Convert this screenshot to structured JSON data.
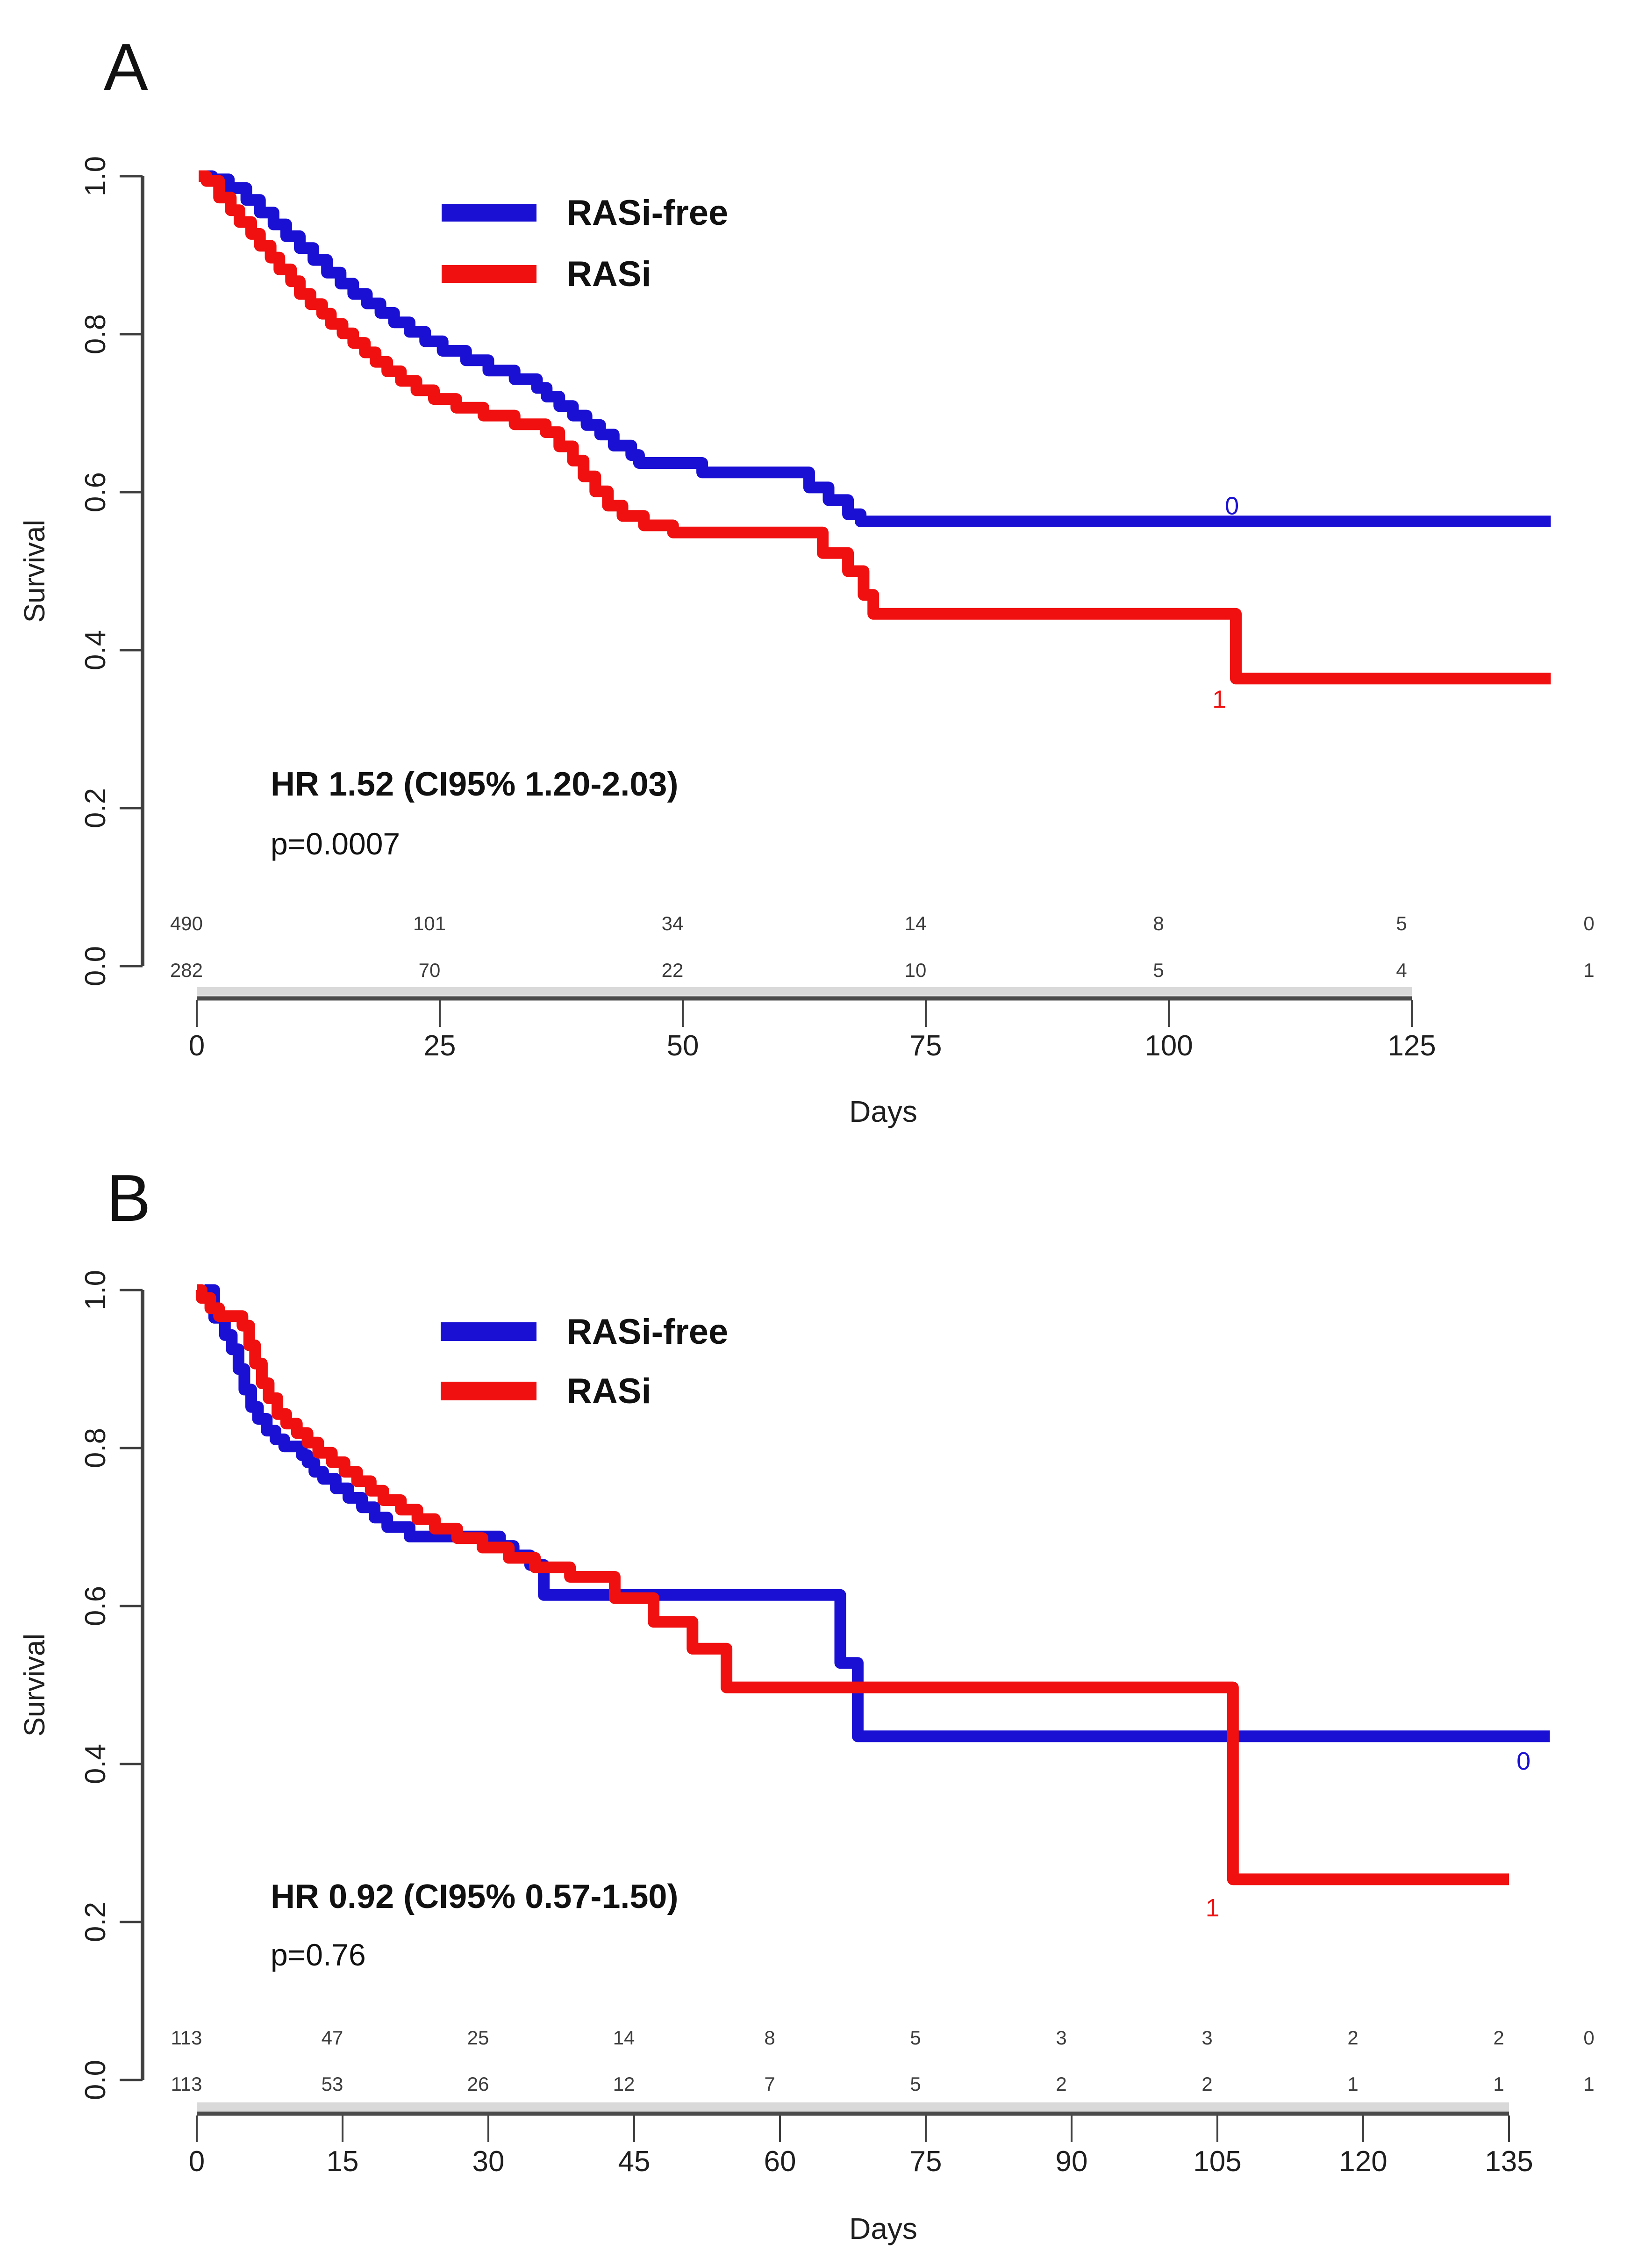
{
  "figure": {
    "background": "#ffffff",
    "colors": {
      "rasi_free": "#1a10d3",
      "rasi": "#f01010",
      "axis": "#3f3f3f",
      "axis_shadow": "#d9d9d9",
      "text": "#111111",
      "risk_text": "#3d3d3d"
    }
  },
  "chart_data": [
    {
      "type": "line",
      "panel_label": "A",
      "title": "",
      "xlabel": "Days",
      "ylabel": "Survival",
      "xlim": [
        0,
        125
      ],
      "ylim": [
        0.0,
        1.0
      ],
      "xticks": [
        0,
        25,
        50,
        75,
        100,
        125
      ],
      "ytick_labels": [
        "1.0",
        "0.8",
        "0.6",
        "0.4",
        "0.2",
        "0.0"
      ],
      "yticks": [
        1.0,
        0.8,
        0.6,
        0.4,
        0.2,
        0.0
      ],
      "grid": false,
      "legend_position": "upper-center",
      "stats": {
        "hr": "HR 1.52 (CI95% 1.20-2.03)",
        "p": "p=0.0007"
      },
      "legend": [
        {
          "label": "RASi-free",
          "color": "#1a10d3"
        },
        {
          "label": "RASi",
          "color": "#f01010"
        }
      ],
      "series": [
        {
          "name": "RASi-free",
          "color": "#1a10d3",
          "end_day": 139.3,
          "annotation": {
            "text": "0",
            "day": 106.5,
            "s": 0.572
          },
          "points": [
            [
              0.5,
              1.0
            ],
            [
              1.6,
              0.996
            ],
            [
              3.3,
              0.985
            ],
            [
              5.1,
              0.97
            ],
            [
              6.5,
              0.954
            ],
            [
              7.9,
              0.939
            ],
            [
              9.2,
              0.924
            ],
            [
              10.6,
              0.909
            ],
            [
              12,
              0.894
            ],
            [
              13.4,
              0.878
            ],
            [
              14.8,
              0.864
            ],
            [
              16.1,
              0.851
            ],
            [
              17.5,
              0.839
            ],
            [
              18.9,
              0.827
            ],
            [
              20.3,
              0.815
            ],
            [
              21.9,
              0.803
            ],
            [
              23.5,
              0.791
            ],
            [
              25.3,
              0.779
            ],
            [
              27.7,
              0.767
            ],
            [
              30,
              0.754
            ],
            [
              32.7,
              0.743
            ],
            [
              35,
              0.732
            ],
            [
              36,
              0.721
            ],
            [
              37.3,
              0.709
            ],
            [
              38.7,
              0.697
            ],
            [
              40.1,
              0.685
            ],
            [
              41.5,
              0.673
            ],
            [
              42.9,
              0.659
            ],
            [
              44.7,
              0.647
            ],
            [
              45.5,
              0.637
            ],
            [
              52,
              0.625
            ],
            [
              63,
              0.606
            ],
            [
              65,
              0.59
            ],
            [
              67,
              0.572
            ],
            [
              68.3,
              0.563
            ],
            [
              139.3,
              0.563
            ]
          ]
        },
        {
          "name": "RASi",
          "color": "#f01010",
          "end_day": 139.3,
          "annotation": {
            "text": "1",
            "day": 105.2,
            "s": 0.327
          },
          "points": [
            [
              0.2,
              1.0
            ],
            [
              1,
              0.994
            ],
            [
              2.3,
              0.973
            ],
            [
              3.5,
              0.957
            ],
            [
              4.4,
              0.942
            ],
            [
              5.6,
              0.927
            ],
            [
              6.5,
              0.912
            ],
            [
              7.6,
              0.897
            ],
            [
              8.5,
              0.882
            ],
            [
              9.7,
              0.867
            ],
            [
              10.6,
              0.851
            ],
            [
              11.7,
              0.838
            ],
            [
              12.9,
              0.826
            ],
            [
              13.8,
              0.813
            ],
            [
              15,
              0.801
            ],
            [
              16.1,
              0.789
            ],
            [
              17.3,
              0.777
            ],
            [
              18.4,
              0.765
            ],
            [
              19.6,
              0.753
            ],
            [
              21,
              0.741
            ],
            [
              22.6,
              0.729
            ],
            [
              24.4,
              0.718
            ],
            [
              26.7,
              0.707
            ],
            [
              29.5,
              0.697
            ],
            [
              32.7,
              0.686
            ],
            [
              35.9,
              0.676
            ],
            [
              37.3,
              0.658
            ],
            [
              38.7,
              0.64
            ],
            [
              39.8,
              0.62
            ],
            [
              41,
              0.601
            ],
            [
              42.3,
              0.583
            ],
            [
              43.8,
              0.57
            ],
            [
              46,
              0.558
            ],
            [
              49,
              0.549
            ],
            [
              64.4,
              0.523
            ],
            [
              67,
              0.5
            ],
            [
              68.6,
              0.47
            ],
            [
              69.6,
              0.446
            ],
            [
              106.9,
              0.364
            ],
            [
              139.3,
              0.364
            ]
          ]
        }
      ],
      "at_risk": {
        "days": [
          0,
          25,
          50,
          75,
          100,
          125,
          143.2
        ],
        "rows": [
          {
            "name": "RASi-free",
            "counts": [
              490,
              101,
              34,
              14,
              8,
              5,
              0
            ]
          },
          {
            "name": "RASi",
            "counts": [
              282,
              70,
              22,
              10,
              5,
              4,
              1
            ]
          }
        ]
      }
    },
    {
      "type": "line",
      "panel_label": "B",
      "title": "",
      "xlabel": "Days",
      "ylabel": "Survival",
      "xlim": [
        0,
        135
      ],
      "ylim": [
        0.0,
        1.0
      ],
      "xticks": [
        0,
        15,
        30,
        45,
        60,
        75,
        90,
        105,
        120,
        135
      ],
      "ytick_labels": [
        "1.0",
        "0.8",
        "0.6",
        "0.4",
        "0.2",
        "0.0"
      ],
      "yticks": [
        1.0,
        0.8,
        0.6,
        0.4,
        0.2,
        0.0
      ],
      "grid": false,
      "legend_position": "upper-center",
      "stats": {
        "hr": "HR 0.92 (CI95% 0.57-1.50)",
        "p": "p=0.76"
      },
      "legend": [
        {
          "label": "RASi-free",
          "color": "#1a10d3"
        },
        {
          "label": "RASi",
          "color": "#f01010"
        }
      ],
      "series": [
        {
          "name": "RASi-free",
          "color": "#1a10d3",
          "end_day": 139.2,
          "annotation": {
            "text": "0",
            "day": 136.5,
            "s": 0.393
          },
          "points": [
            [
              0.8,
              1.0
            ],
            [
              1.8,
              0.965
            ],
            [
              2.9,
              0.943
            ],
            [
              3.6,
              0.925
            ],
            [
              4.3,
              0.9
            ],
            [
              4.9,
              0.874
            ],
            [
              5.6,
              0.852
            ],
            [
              6.3,
              0.837
            ],
            [
              7.2,
              0.822
            ],
            [
              8.1,
              0.811
            ],
            [
              9,
              0.802
            ],
            [
              10.8,
              0.791
            ],
            [
              11.4,
              0.782
            ],
            [
              12.1,
              0.77
            ],
            [
              13,
              0.761
            ],
            [
              14.3,
              0.749
            ],
            [
              15.6,
              0.737
            ],
            [
              17,
              0.725
            ],
            [
              18.3,
              0.712
            ],
            [
              19.6,
              0.7
            ],
            [
              21.9,
              0.688
            ],
            [
              31.2,
              0.676
            ],
            [
              32.6,
              0.664
            ],
            [
              34.3,
              0.652
            ],
            [
              35.7,
              0.614
            ],
            [
              66.2,
              0.528
            ],
            [
              68,
              0.435
            ],
            [
              139.2,
              0.435
            ]
          ]
        },
        {
          "name": "RASi",
          "color": "#f01010",
          "end_day": 135,
          "annotation": {
            "text": "1",
            "day": 104.5,
            "s": 0.207
          },
          "points": [
            [
              0,
              1.0
            ],
            [
              0.5,
              0.99
            ],
            [
              1.4,
              0.977
            ],
            [
              2.3,
              0.967
            ],
            [
              4.7,
              0.955
            ],
            [
              5.4,
              0.93
            ],
            [
              6,
              0.907
            ],
            [
              6.7,
              0.882
            ],
            [
              7.4,
              0.863
            ],
            [
              8.3,
              0.843
            ],
            [
              9.2,
              0.831
            ],
            [
              10.3,
              0.819
            ],
            [
              11.4,
              0.807
            ],
            [
              12.5,
              0.794
            ],
            [
              13.9,
              0.782
            ],
            [
              15.2,
              0.77
            ],
            [
              16.5,
              0.758
            ],
            [
              17.9,
              0.746
            ],
            [
              19.2,
              0.734
            ],
            [
              21,
              0.722
            ],
            [
              22.7,
              0.71
            ],
            [
              24.5,
              0.698
            ],
            [
              26.8,
              0.686
            ],
            [
              29.4,
              0.674
            ],
            [
              32.1,
              0.661
            ],
            [
              34.8,
              0.649
            ],
            [
              38.4,
              0.637
            ],
            [
              43,
              0.61
            ],
            [
              47,
              0.58
            ],
            [
              51,
              0.546
            ],
            [
              54.5,
              0.497
            ],
            [
              106.6,
              0.254
            ],
            [
              135,
              0.254
            ]
          ]
        }
      ],
      "at_risk": {
        "days": [
          0,
          15,
          30,
          45,
          60,
          75,
          90,
          105,
          120,
          135,
          143.2
        ],
        "rows": [
          {
            "name": "RASi-free",
            "counts": [
              113,
              47,
              25,
              14,
              8,
              5,
              3,
              3,
              2,
              2,
              0
            ]
          },
          {
            "name": "RASi",
            "counts": [
              113,
              53,
              26,
              12,
              7,
              5,
              2,
              2,
              1,
              1,
              1
            ]
          }
        ]
      }
    }
  ]
}
